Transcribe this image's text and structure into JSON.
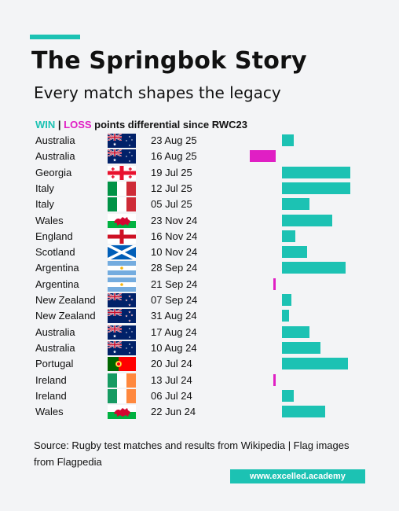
{
  "header": {
    "title": "The Springbok Story",
    "subtitle": "Every match shapes the legacy"
  },
  "legend": {
    "win_label": "WIN",
    "separator": " | ",
    "loss_label": "LOSS",
    "rest_label": " points differential since RWC23"
  },
  "colors": {
    "win": "#1cc2b3",
    "loss": "#e01fc4",
    "background": "#f3f4f6"
  },
  "chart_data": {
    "type": "bar",
    "orientation": "horizontal",
    "matches": [
      {
        "country": "Australia",
        "flag": "australia-flag",
        "date": "23 Aug 25",
        "result": "win",
        "differential": 5
      },
      {
        "country": "Australia",
        "flag": "australia-flag",
        "date": "16 Aug 25",
        "result": "loss",
        "differential": -11
      },
      {
        "country": "Georgia",
        "flag": "georgia-flag",
        "date": "19 Jul 25",
        "result": "win",
        "differential": 30
      },
      {
        "country": "Italy",
        "flag": "italy-flag",
        "date": "12 Jul 25",
        "result": "win",
        "differential": 30
      },
      {
        "country": "Italy",
        "flag": "italy-flag",
        "date": "05 Jul 25",
        "result": "win",
        "differential": 12
      },
      {
        "country": "Wales",
        "flag": "wales-flag",
        "date": "23 Nov 24",
        "result": "win",
        "differential": 22
      },
      {
        "country": "England",
        "flag": "england-flag",
        "date": "16 Nov 24",
        "result": "win",
        "differential": 6
      },
      {
        "country": "Scotland",
        "flag": "scotland-flag",
        "date": "10 Nov 24",
        "result": "win",
        "differential": 11
      },
      {
        "country": "Argentina",
        "flag": "argentina-flag",
        "date": "28 Sep 24",
        "result": "win",
        "differential": 28
      },
      {
        "country": "Argentina",
        "flag": "argentina-flag",
        "date": "21 Sep 24",
        "result": "loss",
        "differential": -1
      },
      {
        "country": "New Zealand",
        "flag": "new-zealand-flag",
        "date": "07 Sep 24",
        "result": "win",
        "differential": 4
      },
      {
        "country": "New Zealand",
        "flag": "new-zealand-flag",
        "date": "31 Aug 24",
        "result": "win",
        "differential": 3
      },
      {
        "country": "Australia",
        "flag": "australia-flag",
        "date": "17 Aug 24",
        "result": "win",
        "differential": 12
      },
      {
        "country": "Australia",
        "flag": "australia-flag",
        "date": "10 Aug 24",
        "result": "win",
        "differential": 17
      },
      {
        "country": "Portugal",
        "flag": "portugal-flag",
        "date": "20 Jul 24",
        "result": "win",
        "differential": 29
      },
      {
        "country": "Ireland",
        "flag": "ireland-flag",
        "date": "13 Jul 24",
        "result": "loss",
        "differential": -1
      },
      {
        "country": "Ireland",
        "flag": "ireland-flag",
        "date": "06 Jul 24",
        "result": "win",
        "differential": 5
      },
      {
        "country": "Wales",
        "flag": "wales-flag",
        "date": "22 Jun 24",
        "result": "win",
        "differential": 19
      }
    ]
  },
  "footer": {
    "source_text": "Source: Rugby test matches and results from Wikipedia | Flag images from Flagpedia",
    "badge": "www.excelled.academy"
  }
}
